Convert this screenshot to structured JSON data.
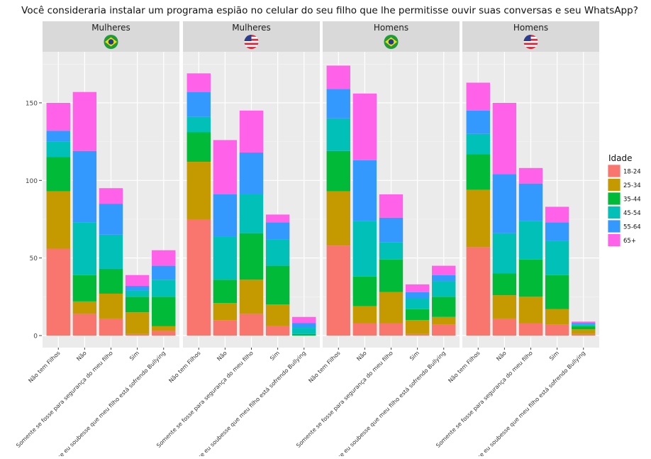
{
  "chart_data": {
    "type": "bar",
    "stacked": true,
    "title": "Você consideraria instalar um programa espião no celular do seu filho que lhe permitisse ouvir suas conversas e seu WhatsApp?",
    "xlabel": "",
    "ylabel": "",
    "ylim": [
      0,
      183
    ],
    "yticks": [
      0,
      50,
      100,
      150
    ],
    "grid": true,
    "categories": [
      "Não tem Filhos",
      "Não",
      "Somente se fosse para segurança do meu filho",
      "Sim",
      "Somente se eu soubesse que meu filho está sofrendo Bullying"
    ],
    "legend": {
      "title": "Idade",
      "position": "right",
      "entries": [
        "18-24",
        "25-34",
        "35-44",
        "45-54",
        "55-64",
        "65+"
      ],
      "colors": [
        "#F8766D",
        "#C49A00",
        "#00BA38",
        "#00C0B8",
        "#3399FF",
        "#FF61E8"
      ]
    },
    "panels": [
      {
        "label": "Mulheres",
        "flag": "brazil-flag",
        "series": [
          {
            "name": "18-24",
            "values": [
              56,
              14,
              11,
              1,
              3
            ]
          },
          {
            "name": "25-34",
            "values": [
              37,
              8,
              16,
              14,
              3
            ]
          },
          {
            "name": "35-44",
            "values": [
              22,
              17,
              16,
              10,
              19
            ]
          },
          {
            "name": "45-54",
            "values": [
              10,
              34,
              22,
              4,
              11
            ]
          },
          {
            "name": "55-64",
            "values": [
              7,
              46,
              20,
              3,
              9
            ]
          },
          {
            "name": "65+",
            "values": [
              18,
              38,
              10,
              7,
              10
            ]
          }
        ]
      },
      {
        "label": "Mulheres",
        "flag": "usa-flag",
        "series": [
          {
            "name": "18-24",
            "values": [
              75,
              10,
              14,
              6,
              0
            ]
          },
          {
            "name": "25-34",
            "values": [
              37,
              11,
              22,
              14,
              0
            ]
          },
          {
            "name": "35-44",
            "values": [
              19,
              15,
              30,
              25,
              1
            ]
          },
          {
            "name": "45-54",
            "values": [
              10,
              28,
              25,
              17,
              4
            ]
          },
          {
            "name": "55-64",
            "values": [
              16,
              27,
              27,
              11,
              3
            ]
          },
          {
            "name": "65+",
            "values": [
              12,
              35,
              27,
              5,
              4
            ]
          }
        ]
      },
      {
        "label": "Homens",
        "flag": "brazil-flag",
        "series": [
          {
            "name": "18-24",
            "values": [
              58,
              8,
              8,
              1,
              7
            ]
          },
          {
            "name": "25-34",
            "values": [
              35,
              11,
              20,
              9,
              5
            ]
          },
          {
            "name": "35-44",
            "values": [
              26,
              19,
              21,
              7,
              13
            ]
          },
          {
            "name": "45-54",
            "values": [
              21,
              36,
              11,
              7,
              10
            ]
          },
          {
            "name": "55-64",
            "values": [
              19,
              39,
              16,
              4,
              4
            ]
          },
          {
            "name": "65+",
            "values": [
              15,
              43,
              15,
              5,
              6
            ]
          }
        ]
      },
      {
        "label": "Homens",
        "flag": "usa-flag",
        "series": [
          {
            "name": "18-24",
            "values": [
              57,
              11,
              8,
              7,
              1
            ]
          },
          {
            "name": "25-34",
            "values": [
              37,
              15,
              17,
              10,
              3
            ]
          },
          {
            "name": "35-44",
            "values": [
              23,
              14,
              24,
              22,
              2
            ]
          },
          {
            "name": "45-54",
            "values": [
              13,
              26,
              25,
              22,
              1
            ]
          },
          {
            "name": "55-64",
            "values": [
              15,
              38,
              24,
              12,
              1
            ]
          },
          {
            "name": "65+",
            "values": [
              18,
              46,
              10,
              10,
              1
            ]
          }
        ]
      }
    ]
  }
}
